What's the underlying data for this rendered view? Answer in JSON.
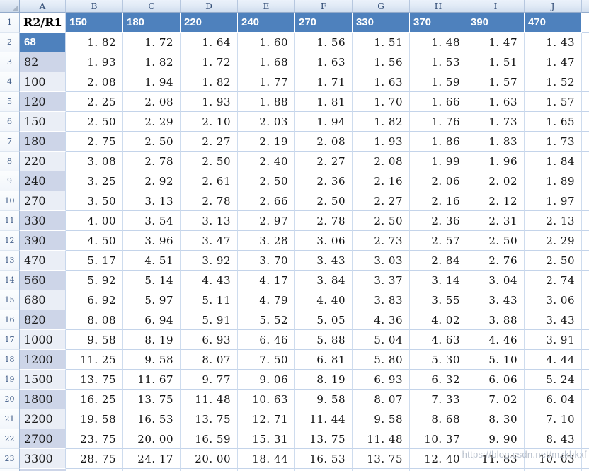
{
  "spreadsheet": {
    "column_letters": [
      "A",
      "B",
      "C",
      "D",
      "E",
      "F",
      "G",
      "H",
      "I",
      "J"
    ],
    "header_row": {
      "n": "1",
      "corner_cell": "R2/R1",
      "values": [
        "150",
        "180",
        "220",
        "240",
        "270",
        "330",
        "370",
        "390",
        "470"
      ]
    },
    "rows": [
      {
        "n": "2",
        "label": "68",
        "band": "blue",
        "values": [
          "1.82",
          "1.72",
          "1.64",
          "1.60",
          "1.56",
          "1.51",
          "1.48",
          "1.47",
          "1.43"
        ]
      },
      {
        "n": "3",
        "label": "82",
        "band": "dark",
        "values": [
          "1.93",
          "1.82",
          "1.72",
          "1.68",
          "1.63",
          "1.56",
          "1.53",
          "1.51",
          "1.47"
        ]
      },
      {
        "n": "4",
        "label": "100",
        "band": "light",
        "values": [
          "2.08",
          "1.94",
          "1.82",
          "1.77",
          "1.71",
          "1.63",
          "1.59",
          "1.57",
          "1.52"
        ]
      },
      {
        "n": "5",
        "label": "120",
        "band": "dark",
        "values": [
          "2.25",
          "2.08",
          "1.93",
          "1.88",
          "1.81",
          "1.70",
          "1.66",
          "1.63",
          "1.57"
        ]
      },
      {
        "n": "6",
        "label": "150",
        "band": "light",
        "values": [
          "2.50",
          "2.29",
          "2.10",
          "2.03",
          "1.94",
          "1.82",
          "1.76",
          "1.73",
          "1.65"
        ]
      },
      {
        "n": "7",
        "label": "180",
        "band": "dark",
        "values": [
          "2.75",
          "2.50",
          "2.27",
          "2.19",
          "2.08",
          "1.93",
          "1.86",
          "1.83",
          "1.73"
        ]
      },
      {
        "n": "8",
        "label": "220",
        "band": "light",
        "values": [
          "3.08",
          "2.78",
          "2.50",
          "2.40",
          "2.27",
          "2.08",
          "1.99",
          "1.96",
          "1.84"
        ]
      },
      {
        "n": "9",
        "label": "240",
        "band": "dark",
        "values": [
          "3.25",
          "2.92",
          "2.61",
          "2.50",
          "2.36",
          "2.16",
          "2.06",
          "2.02",
          "1.89"
        ]
      },
      {
        "n": "10",
        "label": "270",
        "band": "light",
        "values": [
          "3.50",
          "3.13",
          "2.78",
          "2.66",
          "2.50",
          "2.27",
          "2.16",
          "2.12",
          "1.97"
        ]
      },
      {
        "n": "11",
        "label": "330",
        "band": "dark",
        "values": [
          "4.00",
          "3.54",
          "3.13",
          "2.97",
          "2.78",
          "2.50",
          "2.36",
          "2.31",
          "2.13"
        ]
      },
      {
        "n": "12",
        "label": "390",
        "band": "dark",
        "values": [
          "4.50",
          "3.96",
          "3.47",
          "3.28",
          "3.06",
          "2.73",
          "2.57",
          "2.50",
          "2.29"
        ]
      },
      {
        "n": "13",
        "label": "470",
        "band": "light",
        "values": [
          "5.17",
          "4.51",
          "3.92",
          "3.70",
          "3.43",
          "3.03",
          "2.84",
          "2.76",
          "2.50"
        ]
      },
      {
        "n": "14",
        "label": "560",
        "band": "dark",
        "values": [
          "5.92",
          "5.14",
          "4.43",
          "4.17",
          "3.84",
          "3.37",
          "3.14",
          "3.04",
          "2.74"
        ]
      },
      {
        "n": "15",
        "label": "680",
        "band": "light",
        "values": [
          "6.92",
          "5.97",
          "5.11",
          "4.79",
          "4.40",
          "3.83",
          "3.55",
          "3.43",
          "3.06"
        ]
      },
      {
        "n": "16",
        "label": "820",
        "band": "dark",
        "values": [
          "8.08",
          "6.94",
          "5.91",
          "5.52",
          "5.05",
          "4.36",
          "4.02",
          "3.88",
          "3.43"
        ]
      },
      {
        "n": "17",
        "label": "1000",
        "band": "light",
        "values": [
          "9.58",
          "8.19",
          "6.93",
          "6.46",
          "5.88",
          "5.04",
          "4.63",
          "4.46",
          "3.91"
        ]
      },
      {
        "n": "18",
        "label": "1200",
        "band": "dark",
        "values": [
          "11.25",
          "9.58",
          "8.07",
          "7.50",
          "6.81",
          "5.80",
          "5.30",
          "5.10",
          "4.44"
        ]
      },
      {
        "n": "19",
        "label": "1500",
        "band": "light",
        "values": [
          "13.75",
          "11.67",
          "9.77",
          "9.06",
          "8.19",
          "6.93",
          "6.32",
          "6.06",
          "5.24"
        ]
      },
      {
        "n": "20",
        "label": "1800",
        "band": "dark",
        "values": [
          "16.25",
          "13.75",
          "11.48",
          "10.63",
          "9.58",
          "8.07",
          "7.33",
          "7.02",
          "6.04"
        ]
      },
      {
        "n": "21",
        "label": "2200",
        "band": "light",
        "values": [
          "19.58",
          "16.53",
          "13.75",
          "12.71",
          "11.44",
          "9.58",
          "8.68",
          "8.30",
          "7.10"
        ]
      },
      {
        "n": "22",
        "label": "2700",
        "band": "dark",
        "values": [
          "23.75",
          "20.00",
          "16.59",
          "15.31",
          "13.75",
          "11.48",
          "10.37",
          "9.90",
          "8.43"
        ]
      },
      {
        "n": "23",
        "label": "3300",
        "band": "light",
        "values": [
          "28.75",
          "24.17",
          "20.00",
          "18.44",
          "16.53",
          "13.75",
          "12.40",
          "11.83",
          "10.03"
        ]
      }
    ],
    "watermark": "https://blog.csdn.net/mzkbkxf",
    "colors": {
      "header_blue": "#4E81BD",
      "band_dark": "#CDD5E8",
      "band_light": "#EAEEF6",
      "gridline": "#C6D5EA"
    }
  }
}
